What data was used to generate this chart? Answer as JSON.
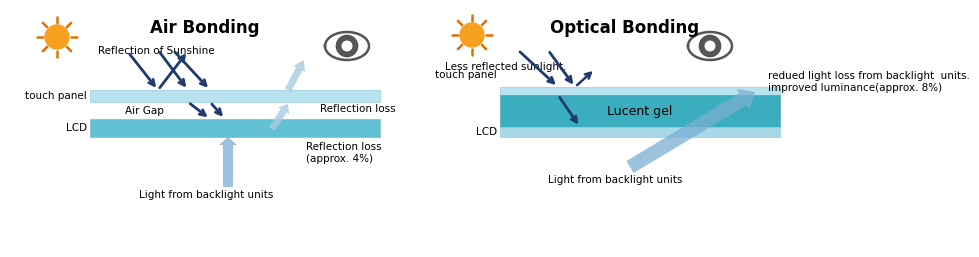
{
  "title_left": "Air Bonding",
  "title_right": "Optical Bonding",
  "bg_color": "#ffffff",
  "panel_color_light": "#b8e2ee",
  "panel_color_medium": "#62c0d5",
  "panel_color_gel": "#3aadbe",
  "panel_color_lcd_light": "#a8d8e8",
  "dark_arrow_color": "#1e3a6e",
  "light_arrow_color": "#7bafd4",
  "light_arrow_color2": "#a8cce0",
  "sun_body_color": "#f5a020",
  "sun_ray_color": "#e07000",
  "eye_color": "#555555",
  "text_color": "#222222",
  "label_touch_panel": "touch panel",
  "label_lcd": "LCD",
  "label_air_gap": "Air Gap",
  "label_reflection_loss1": "Reflection loss",
  "label_reflection_loss2": "Reflection loss\n(approx. 4%)",
  "label_reflection_sunshine": "Reflection of Sunshine",
  "label_less_reflected": "Less reflected sunlight.",
  "label_light_backlight_left": "Light from backlight units",
  "label_light_backlight_right": "Light from backlight units",
  "label_lucent_gel": "Lucent gel",
  "label_reduced": "redued light loss from backlight  units.\nimproved luminance(approx. 8%)"
}
